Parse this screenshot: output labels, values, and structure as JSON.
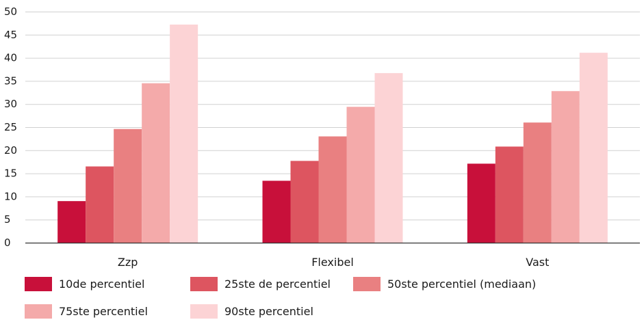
{
  "chart_data": {
    "type": "bar",
    "categories": [
      "Zzp",
      "Flexibel",
      "Vast"
    ],
    "series": [
      {
        "name": "10de percentiel",
        "color": "#c8103a",
        "values": [
          9.0,
          13.4,
          17.1
        ]
      },
      {
        "name": "25ste de percentiel",
        "color": "#dd5560",
        "values": [
          16.5,
          17.7,
          20.8
        ]
      },
      {
        "name": "50ste percentiel (mediaan)",
        "color": "#e98081",
        "values": [
          24.6,
          23.0,
          26.0
        ]
      },
      {
        "name": "75ste percentiel",
        "color": "#f4aaaa",
        "values": [
          34.5,
          29.4,
          32.8
        ]
      },
      {
        "name": "90ste percentiel",
        "color": "#fcd3d5",
        "values": [
          47.2,
          36.7,
          41.1
        ]
      }
    ],
    "yticks": [
      "0",
      "5",
      "10",
      "15",
      "20",
      "25",
      "30",
      "35",
      "40",
      "45",
      "50"
    ],
    "ylim": [
      0,
      50
    ],
    "grid": true,
    "legend_position": "bottom"
  }
}
